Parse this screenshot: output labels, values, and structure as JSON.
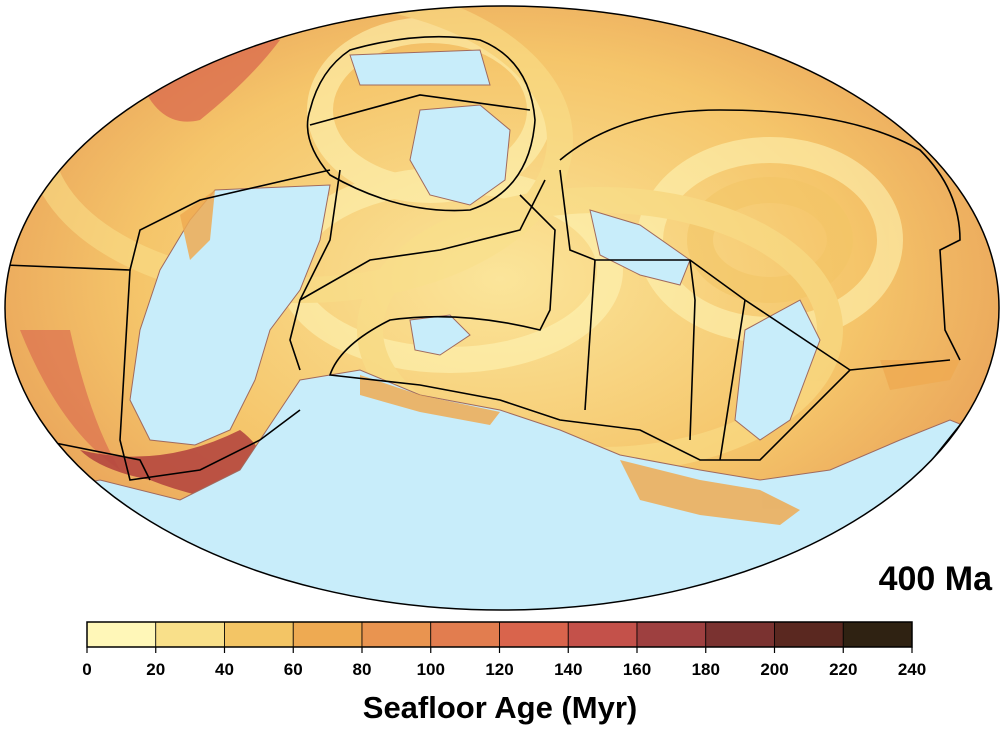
{
  "age_label": "400 Ma",
  "colorbar": {
    "title": "Seafloor Age (Myr)",
    "ticks": [
      "0",
      "20",
      "40",
      "60",
      "80",
      "100",
      "120",
      "140",
      "160",
      "180",
      "200",
      "220",
      "240"
    ],
    "colors": [
      "#fff7b8",
      "#f9e08a",
      "#f3c565",
      "#eeaa52",
      "#e99450",
      "#e27d4f",
      "#d9644c",
      "#c4514a",
      "#9e4040",
      "#7a3230",
      "#5a2820",
      "#2f2212"
    ]
  },
  "colors": {
    "ocean_base": "#f7d27a",
    "continent": "#c8edfa",
    "plate_boundary": "#000000",
    "coastline": "#a06a5e"
  }
}
